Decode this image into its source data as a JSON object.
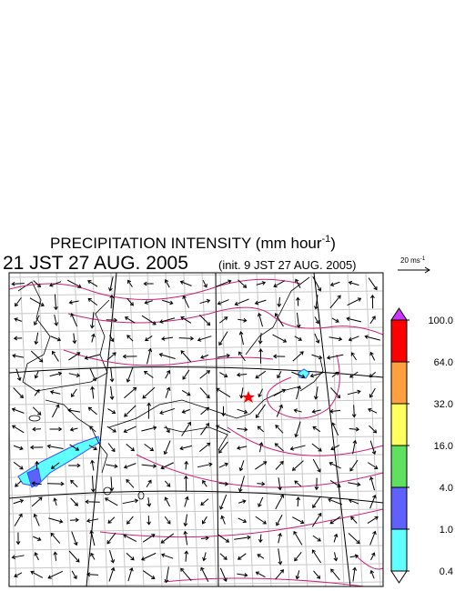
{
  "title": {
    "main": "PRECIPITATION INTENSITY (mm hour",
    "exponent": "-1",
    "close": ")"
  },
  "valid_time": "21 JST 27 AUG. 2005",
  "init_time": "(init. 9 JST 27 AUG. 2005)",
  "wind_scale": {
    "label": "20 ms",
    "exponent": "-1"
  },
  "colorbar": {
    "levels": [
      {
        "value": 100,
        "label": "100.0"
      },
      {
        "value": 64,
        "label": "64.0"
      },
      {
        "value": 32,
        "label": "32.0"
      },
      {
        "value": 16,
        "label": "16.0"
      },
      {
        "value": 4,
        "label": "4.0"
      },
      {
        "value": 1,
        "label": "1.0"
      },
      {
        "value": 0.4,
        "label": "0.4"
      }
    ],
    "colors": [
      "#ff0000",
      "#ffa040",
      "#ffff60",
      "#60e060",
      "#6060ff",
      "#60ffff"
    ],
    "over_color": "#cc33ff",
    "under_color": "#ffffff"
  }
}
